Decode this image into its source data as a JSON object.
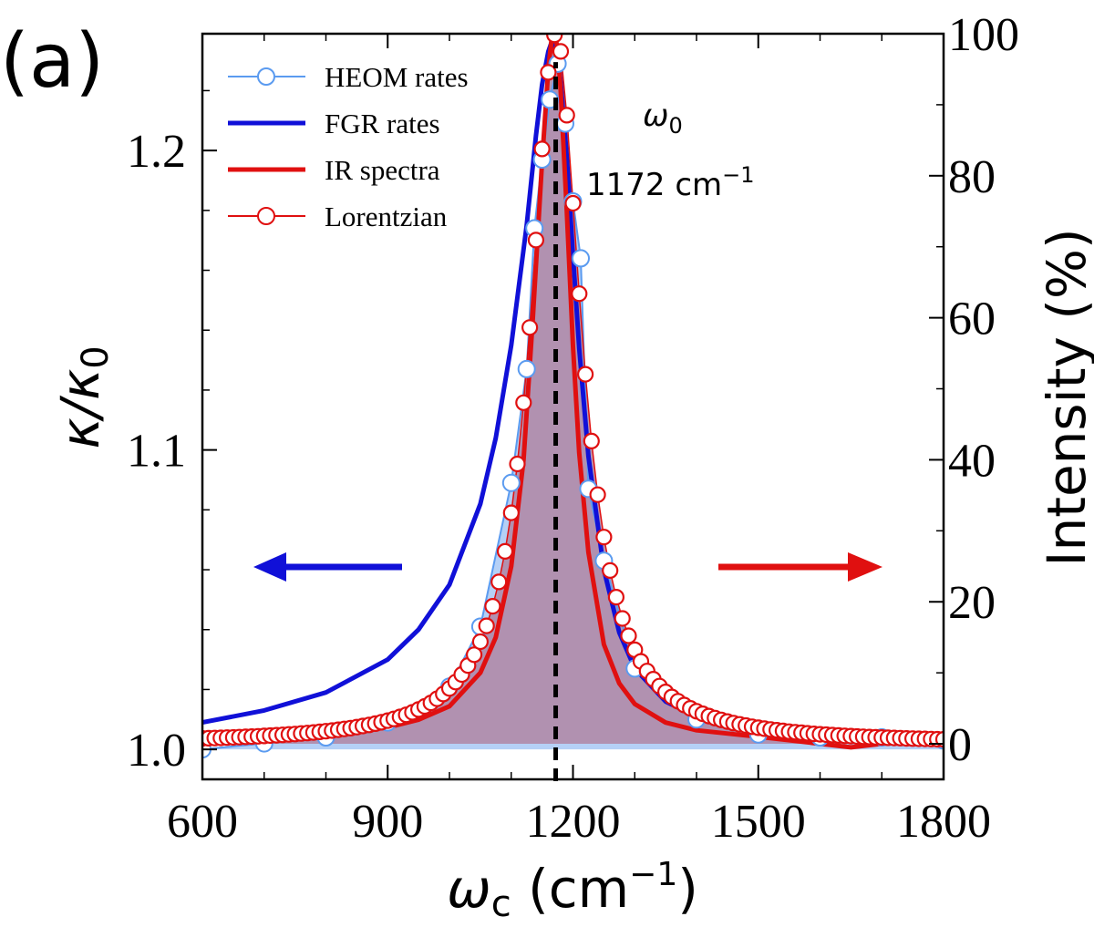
{
  "panel_label": "(a)",
  "chart_data": {
    "type": "line",
    "title": "",
    "xlabel": "ω",
    "xlabel_sub": "c",
    "xlabel_unit_open": " (cm",
    "xlabel_unit_exp": "−1",
    "xlabel_unit_close": ")",
    "ylabel_left_k": "κ/κ",
    "ylabel_left_sub": "0",
    "ylabel_right": "Intensity (%)",
    "xlim": [
      600,
      1800
    ],
    "ylim_left": [
      0.99,
      1.239
    ],
    "ylim_right": [
      -5,
      100
    ],
    "x_ticks": [
      600,
      900,
      1200,
      1500,
      1800
    ],
    "x_tick_labels": [
      "600",
      "900",
      "1200",
      "1500",
      "1800"
    ],
    "y_left_ticks": [
      1.0,
      1.1,
      1.2
    ],
    "y_left_tick_labels": [
      "1.0",
      "1.1",
      "1.2"
    ],
    "y_right_ticks": [
      0,
      20,
      40,
      60,
      80,
      100
    ],
    "y_right_tick_labels": [
      "0",
      "20",
      "40",
      "60",
      "80",
      "100"
    ],
    "legend": [
      {
        "label": "HEOM rates",
        "color": "#5b9bf0",
        "style": "line-open-circle"
      },
      {
        "label": "FGR rates",
        "color": "#1010d8",
        "style": "thick-line"
      },
      {
        "label": "IR spectra",
        "color": "#e01010",
        "style": "thick-line"
      },
      {
        "label": "Lorentzian",
        "color": "#e01010",
        "style": "line-open-circle"
      }
    ],
    "annotations": {
      "omega0_symbol": "ω",
      "omega0_sub": "0",
      "omega0_value": "1172 cm",
      "omega0_value_exp": "−1",
      "omega0_x": 1172
    },
    "series": [
      {
        "name": "HEOM rates",
        "axis": "left",
        "color": "#5b9bf0",
        "fill": "#a8c8f4",
        "x": [
          600,
          700,
          800,
          900,
          1000,
          1050,
          1100,
          1125,
          1137.5,
          1150,
          1162.5,
          1175,
          1187.5,
          1200,
          1212.5,
          1225,
          1250,
          1300,
          1400,
          1500,
          1600,
          1700,
          1800
        ],
        "y": [
          1.0,
          1.002,
          1.004,
          1.009,
          1.021,
          1.041,
          1.089,
          1.127,
          1.174,
          1.197,
          1.217,
          1.229,
          1.209,
          1.183,
          1.164,
          1.087,
          1.063,
          1.027,
          1.01,
          1.005,
          1.004,
          1.004,
          1.003
        ]
      },
      {
        "name": "FGR rates",
        "axis": "left",
        "color": "#1010d8",
        "x": [
          600,
          700,
          800,
          900,
          950,
          1000,
          1050,
          1075,
          1100,
          1125,
          1140,
          1150,
          1160,
          1165,
          1170,
          1175,
          1180,
          1190,
          1200,
          1210,
          1225,
          1250,
          1275,
          1300,
          1350,
          1400,
          1500,
          1600,
          1700,
          1800
        ],
        "y": [
          1.009,
          1.013,
          1.019,
          1.03,
          1.04,
          1.055,
          1.082,
          1.104,
          1.135,
          1.175,
          1.205,
          1.222,
          1.233,
          1.236,
          1.235,
          1.231,
          1.223,
          1.198,
          1.165,
          1.134,
          1.098,
          1.06,
          1.039,
          1.027,
          1.016,
          1.011,
          1.007,
          1.006,
          1.005,
          1.004
        ]
      },
      {
        "name": "IR spectra",
        "axis": "right",
        "color": "#e01010",
        "fill": "#b08aa8",
        "x": [
          600,
          700,
          800,
          900,
          950,
          1000,
          1050,
          1075,
          1100,
          1120,
          1135,
          1150,
          1160,
          1165,
          1170,
          1175,
          1180,
          1190,
          1200,
          1210,
          1225,
          1250,
          1275,
          1300,
          1350,
          1400,
          1500,
          1600,
          1650,
          1700,
          1750,
          1800
        ],
        "y": [
          0.4,
          0.8,
          1.3,
          2.3,
          3.4,
          5.3,
          10,
          15,
          25,
          40,
          60,
          82,
          95,
          99,
          100,
          98,
          92,
          75,
          56,
          41,
          27,
          14,
          8.5,
          5.6,
          3,
          1.9,
          1.0,
          0,
          -0.5,
          0,
          0.5,
          1.2
        ]
      },
      {
        "name": "Lorentzian",
        "axis": "right",
        "color": "#e01010",
        "model": "lorentzian",
        "center": 1172,
        "hwhm": 50,
        "peak": 100,
        "x_start": 600,
        "x_end": 1800,
        "x_step": 10
      }
    ]
  }
}
